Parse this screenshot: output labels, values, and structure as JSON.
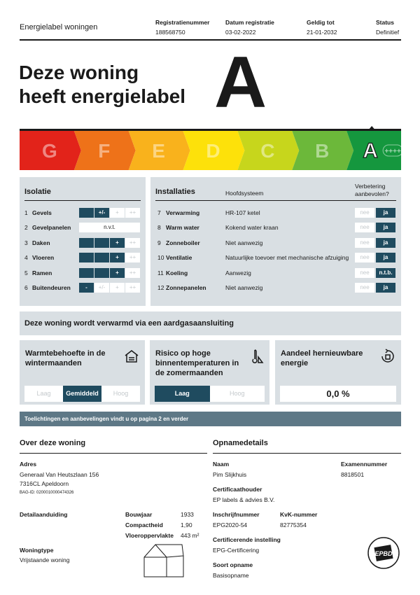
{
  "header": {
    "title": "Energielabel woningen",
    "fields": [
      {
        "label": "Registratienummer",
        "value": "188568750"
      },
      {
        "label": "Datum registratie",
        "value": "03-02-2022"
      },
      {
        "label": "Geldig tot",
        "value": "21-01-2032"
      },
      {
        "label": "Status",
        "value": "Definitief"
      }
    ]
  },
  "headline": {
    "lines": [
      "Deze woning",
      "heeft energielabel"
    ],
    "label": "A"
  },
  "scale": {
    "letters": [
      "G",
      "F",
      "E",
      "D",
      "C",
      "B",
      "A"
    ],
    "plus": "++++"
  },
  "isolatie": {
    "title": "Isolatie",
    "rows": [
      {
        "num": "1",
        "name": "Gevels",
        "cells": [
          {
            "on": true
          },
          {
            "text": "+/-",
            "on": true
          },
          {
            "text": "+",
            "on": false
          },
          {
            "text": "++",
            "on": false
          }
        ]
      },
      {
        "num": "2",
        "name": "Gevelpanelen",
        "cells": [
          {
            "text": "n.v.t.",
            "on": false
          }
        ]
      },
      {
        "num": "3",
        "name": "Daken",
        "cells": [
          {
            "on": true
          },
          {
            "on": true
          },
          {
            "text": "+",
            "on": true
          },
          {
            "text": "++",
            "on": false
          }
        ]
      },
      {
        "num": "4",
        "name": "Vloeren",
        "cells": [
          {
            "on": true
          },
          {
            "on": true
          },
          {
            "text": "+",
            "on": true
          },
          {
            "text": "++",
            "on": false
          }
        ]
      },
      {
        "num": "5",
        "name": "Ramen",
        "cells": [
          {
            "on": true
          },
          {
            "on": true
          },
          {
            "text": "+",
            "on": true
          },
          {
            "text": "++",
            "on": false
          }
        ]
      },
      {
        "num": "6",
        "name": "Buitendeuren",
        "cells": [
          {
            "text": "-",
            "on": true
          },
          {
            "text": "+/-",
            "on": false
          },
          {
            "text": "+",
            "on": false
          },
          {
            "text": "++",
            "on": false
          }
        ]
      }
    ]
  },
  "installaties": {
    "title": "Installaties",
    "col_system": "Hoofdsysteem",
    "col_advice": "Verbetering aanbevolen?",
    "rows": [
      {
        "num": "7",
        "name": "Verwarming",
        "system": "HR-107 ketel",
        "options": [
          {
            "text": "nee",
            "on": false
          },
          {
            "text": "ja",
            "on": true
          }
        ]
      },
      {
        "num": "8",
        "name": "Warm water",
        "system": "Kokend water kraan",
        "options": [
          {
            "text": "nee",
            "on": false
          },
          {
            "text": "ja",
            "on": true
          }
        ]
      },
      {
        "num": "9",
        "name": "Zonneboiler",
        "system": "Niet aanwezig",
        "options": [
          {
            "text": "nee",
            "on": false
          },
          {
            "text": "ja",
            "on": true
          }
        ]
      },
      {
        "num": "10",
        "name": "Ventilatie",
        "system": "Natuurlijke toevoer met mechanische afzuiging",
        "options": [
          {
            "text": "nee",
            "on": false
          },
          {
            "text": "ja",
            "on": true
          }
        ]
      },
      {
        "num": "11",
        "name": "Koeling",
        "system": "Aanwezig",
        "options": [
          {
            "text": "nee",
            "on": false
          },
          {
            "text": "n.t.b.",
            "on": true
          }
        ]
      },
      {
        "num": "12",
        "name": "Zonnepanelen",
        "system": "Niet aanwezig",
        "options": [
          {
            "text": "nee",
            "on": false
          },
          {
            "text": "ja",
            "on": true
          }
        ]
      }
    ]
  },
  "heating": "Deze woning wordt verwarmd via een aardgasaansluiting",
  "cards": [
    {
      "title": "Warmtebehoefte in de wintermaanden",
      "options": [
        {
          "text": "Laag",
          "on": false
        },
        {
          "text": "Gemiddeld",
          "on": true
        },
        {
          "text": "Hoog",
          "on": false
        }
      ]
    },
    {
      "title": "Risico op hoge binnentemperaturen in de zomermaanden",
      "options": [
        {
          "text": "Laag",
          "on": true
        },
        {
          "text": "Hoog",
          "on": false
        }
      ]
    },
    {
      "title": "Aandeel hernieuwbare energie",
      "value": "0,0 %"
    }
  ],
  "notice": "Toelichtingen en aanbevelingen vindt u op pagina 2 en verder",
  "about": {
    "title": "Over deze woning",
    "address_label": "Adres",
    "address": [
      "Generaal Van Heutszlaan 156",
      "7316CL Apeldoorn"
    ],
    "bag_id": "BAG-ID: 0200010000474326",
    "detail_label": "Detailaanduiding",
    "specs": [
      {
        "label": "Bouwjaar",
        "value": "1933"
      },
      {
        "label": "Compactheid",
        "value": "1,90"
      },
      {
        "label": "Vloeroppervlakte",
        "value": "443 m²"
      }
    ],
    "type_label": "Woningtype",
    "type": "Vrijstaande woning"
  },
  "opname": {
    "title": "Opnamedetails",
    "fields": [
      {
        "label": "Naam",
        "value": "Pim Slijkhuis"
      },
      {
        "label": "Examennummer",
        "value": "8818501"
      },
      {
        "label": "Certificaathouder",
        "value": "EP labels & advies B.V."
      },
      {
        "label": "Inschrijfnummer",
        "value": "EPG2020-54"
      },
      {
        "label": "KvK-nummer",
        "value": "82775354"
      },
      {
        "label": "Certificerende instelling",
        "value": "EPG-Certificering"
      },
      {
        "label": "Soort opname",
        "value": "Basisopname"
      }
    ]
  },
  "logo_text": "EPBD"
}
